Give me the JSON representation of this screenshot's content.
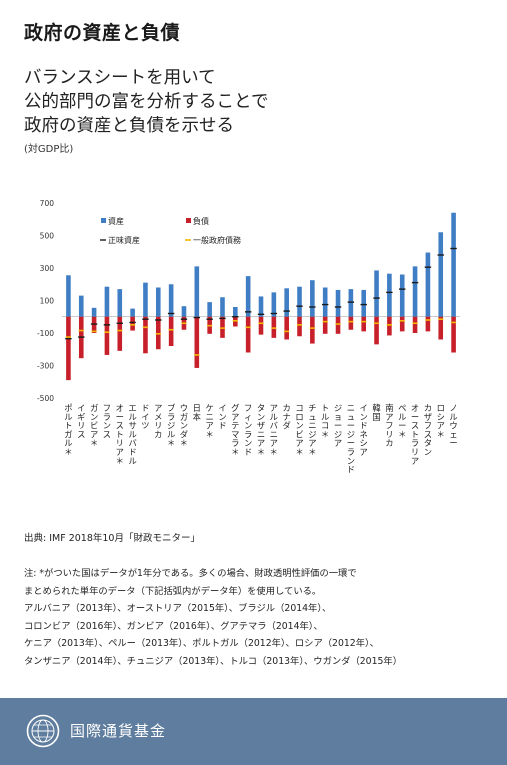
{
  "header": {
    "title": "政府の資産と負債",
    "subtitle_lines": [
      "バランスシートを用いて",
      "公的部門の富を分析することで",
      "政府の資産と負債を示せる"
    ],
    "unit": "(対GDP比)"
  },
  "chart_data": {
    "type": "bar",
    "ylim": [
      -500,
      700
    ],
    "yticks": [
      700,
      500,
      300,
      100,
      -100,
      -300,
      -500
    ],
    "legend": {
      "assets": "資産",
      "liabilities": "負債",
      "net_worth": "正味資産",
      "gross_debt": "一般政府債務"
    },
    "colors": {
      "assets": "#3f7ec4",
      "liabilities": "#c8202a",
      "net_worth": "#1a1a1a",
      "gross_debt": "#f2b705"
    },
    "categories": [
      "ポルトガル＊",
      "イギリス",
      "ガンビア＊",
      "フランス",
      "オーストリア＊",
      "エルサルバドル",
      "ドイツ",
      "アメリカ",
      "ブラジル＊",
      "ウガンダ＊",
      "日本",
      "ケニア＊",
      "インド",
      "グアテマラ＊",
      "フィンランド",
      "タンザニア＊",
      "アルバニア＊",
      "カナダ",
      "コロンビア＊",
      "チュニジア＊",
      "トルコ＊",
      "ジョージア",
      "ニュージーランド",
      "インドネシア",
      "韓国",
      "南アフリカ",
      "ペルー＊",
      "オーストラリア",
      "カザフスタン",
      "ロシア＊",
      "ノルウェー"
    ],
    "series": [
      {
        "name": "資産",
        "values": [
          255,
          130,
          55,
          185,
          170,
          50,
          210,
          180,
          200,
          65,
          310,
          90,
          120,
          60,
          250,
          125,
          150,
          175,
          185,
          225,
          180,
          165,
          170,
          165,
          285,
          265,
          260,
          310,
          395,
          520,
          640
        ]
      },
      {
        "name": "負債",
        "values": [
          -390,
          -255,
          -100,
          -235,
          -210,
          -85,
          -225,
          -200,
          -180,
          -80,
          -315,
          -105,
          -130,
          -60,
          -220,
          -110,
          -130,
          -140,
          -120,
          -165,
          -105,
          -105,
          -80,
          -90,
          -170,
          -115,
          -90,
          -100,
          -90,
          -140,
          -220
        ]
      },
      {
        "name": "正味資産",
        "values": [
          -135,
          -125,
          -45,
          -50,
          -40,
          -35,
          -15,
          -20,
          20,
          -15,
          -5,
          -15,
          -10,
          0,
          30,
          15,
          20,
          35,
          65,
          60,
          75,
          60,
          90,
          75,
          115,
          150,
          170,
          210,
          305,
          380,
          420
        ]
      },
      {
        "name": "一般政府債務",
        "values": [
          -125,
          -85,
          -90,
          -95,
          -85,
          -50,
          -65,
          -105,
          -80,
          -40,
          -235,
          -55,
          -70,
          -25,
          -65,
          -40,
          -70,
          -90,
          -50,
          -70,
          -30,
          -45,
          -30,
          -30,
          -40,
          -50,
          -25,
          -40,
          -20,
          -15,
          -35
        ]
      }
    ]
  },
  "source": "出典: IMF 2018年10月「財政モニター」",
  "notes": [
    "注: *がついた国はデータが1年分である。多くの場合、財政透明性評価の一環で",
    "まとめられた単年のデータ（下記括弧内がデータ年）を使用している。",
    "アルバニア（2013年）、オーストリア（2015年）、ブラジル（2014年）、",
    "コロンビア（2016年）、ガンビア（2016年）、グアテマラ（2014年）、",
    "ケニア（2013年）、ペルー（2013年）、ポルトガル（2012年）、ロシア（2012年）、",
    "タンザニア（2014年）、チュニジア（2013年）、トルコ（2013年）、ウガンダ（2015年）"
  ],
  "footer": {
    "org_name": "国際通貨基金",
    "logo_icon": "imf-seal-icon"
  }
}
